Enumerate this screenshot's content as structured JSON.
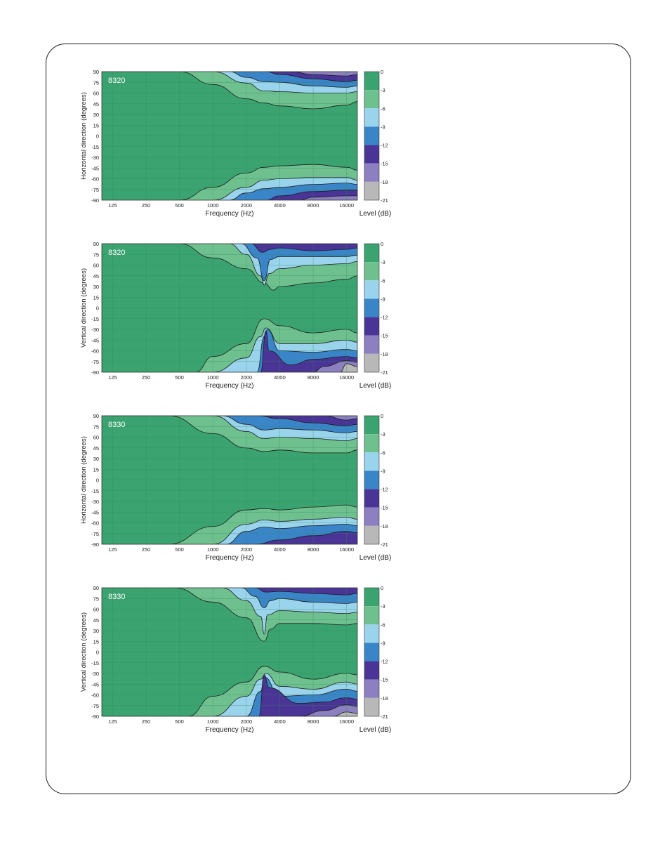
{
  "chart_data": [
    {
      "type": "heatmap",
      "label": "8320",
      "ylabel": "Horizontal direction (degrees)",
      "xlabel": "Frequency (Hz)",
      "colorbar_label": "Level (dB)",
      "xticks": [
        "125",
        "250",
        "500",
        "1000",
        "2000",
        "4000",
        "8000",
        "16000"
      ],
      "yticks": [
        90,
        75,
        60,
        45,
        30,
        15,
        0,
        -15,
        -30,
        -45,
        -60,
        -75,
        -90
      ],
      "colorbar_ticks": [
        0,
        -3,
        -6,
        -9,
        -12,
        -15,
        -18,
        -21
      ],
      "xlim": [
        100,
        20000
      ],
      "ylim": [
        -90,
        90
      ],
      "contour_levels_db": [
        -3,
        -6,
        -9,
        -12,
        -15,
        -18
      ],
      "contours_top": [
        {
          "level": -3,
          "x": [
            500,
            1000,
            2000,
            2900,
            4000,
            8000,
            16000,
            20000
          ],
          "y": [
            90,
            72,
            52,
            46,
            42,
            38,
            43,
            48
          ]
        },
        {
          "level": -6,
          "x": [
            1000,
            2000,
            2900,
            4000,
            8000,
            16000,
            20000
          ],
          "y": [
            90,
            74,
            63,
            62,
            60,
            60,
            62
          ]
        },
        {
          "level": -9,
          "x": [
            1400,
            2000,
            2900,
            4000,
            8000,
            16000,
            20000
          ],
          "y": [
            90,
            82,
            76,
            75,
            70,
            68,
            70
          ]
        },
        {
          "level": -12,
          "x": [
            3000,
            4000,
            8000,
            16000,
            20000
          ],
          "y": [
            90,
            86,
            80,
            76,
            78
          ]
        },
        {
          "level": -15,
          "x": [
            5000,
            8000,
            16000,
            20000
          ],
          "y": [
            90,
            86,
            84,
            86
          ]
        }
      ],
      "contours_bottom": [
        {
          "level": -3,
          "x": [
            500,
            1000,
            2000,
            2900,
            4000,
            8000,
            16000,
            20000
          ],
          "y": [
            -90,
            -72,
            -52,
            -44,
            -42,
            -40,
            -44,
            -48
          ]
        },
        {
          "level": -6,
          "x": [
            1000,
            2000,
            2900,
            4000,
            8000,
            16000,
            20000
          ],
          "y": [
            -90,
            -72,
            -62,
            -60,
            -58,
            -58,
            -62
          ]
        },
        {
          "level": -9,
          "x": [
            1400,
            2000,
            2900,
            4000,
            8000,
            16000,
            20000
          ],
          "y": [
            -90,
            -80,
            -74,
            -72,
            -68,
            -66,
            -68
          ]
        },
        {
          "level": -12,
          "x": [
            3000,
            4000,
            8000,
            16000,
            20000
          ],
          "y": [
            -90,
            -84,
            -78,
            -76,
            -76
          ]
        },
        {
          "level": -15,
          "x": [
            6000,
            8000,
            16000,
            20000
          ],
          "y": [
            -90,
            -86,
            -84,
            -84
          ]
        }
      ]
    },
    {
      "type": "heatmap",
      "label": "8320",
      "ylabel": "Vertical direction (degrees)",
      "xlabel": "Frequency (Hz)",
      "colorbar_label": "Level (dB)",
      "xticks": [
        "125",
        "250",
        "500",
        "1000",
        "2000",
        "4000",
        "8000",
        "16000"
      ],
      "yticks": [
        90,
        75,
        60,
        45,
        30,
        15,
        0,
        -15,
        -30,
        -45,
        -60,
        -75,
        -90
      ],
      "colorbar_ticks": [
        0,
        -3,
        -6,
        -9,
        -12,
        -15,
        -18,
        -21
      ],
      "xlim": [
        100,
        20000
      ],
      "ylim": [
        -90,
        90
      ],
      "contour_levels_db": [
        -3,
        -6,
        -9,
        -12,
        -15,
        -18
      ],
      "contours_top": [
        {
          "level": -3,
          "x": [
            500,
            1000,
            2000,
            2900,
            3500,
            4000,
            8000,
            16000,
            20000
          ],
          "y": [
            90,
            70,
            55,
            35,
            25,
            30,
            35,
            40,
            45
          ]
        },
        {
          "level": -6,
          "x": [
            1400,
            2000,
            2700,
            2900,
            3200,
            4000,
            8000,
            16000,
            20000
          ],
          "y": [
            90,
            75,
            45,
            32,
            48,
            55,
            60,
            62,
            65
          ]
        },
        {
          "level": -9,
          "x": [
            1800,
            2500,
            2900,
            3300,
            4000,
            8000,
            16000,
            20000
          ],
          "y": [
            90,
            70,
            38,
            68,
            72,
            72,
            72,
            74
          ]
        },
        {
          "level": -12,
          "x": [
            2200,
            2800,
            3300,
            4000,
            8000,
            16000,
            20000
          ],
          "y": [
            90,
            78,
            82,
            84,
            80,
            82,
            84
          ]
        }
      ],
      "contours_bottom": [
        {
          "level": -3,
          "x": [
            700,
            1000,
            2000,
            2900,
            4000,
            8000,
            16000,
            20000
          ],
          "y": [
            -90,
            -68,
            -50,
            -15,
            -25,
            -35,
            -30,
            -35
          ]
        },
        {
          "level": -6,
          "x": [
            1000,
            2000,
            2700,
            3000,
            4000,
            8000,
            16000,
            20000
          ],
          "y": [
            -90,
            -70,
            -40,
            -28,
            -50,
            -50,
            -45,
            -48
          ]
        },
        {
          "level": -9,
          "x": [
            2500,
            2900,
            3100,
            4000,
            8000,
            16000,
            20000
          ],
          "y": [
            -90,
            -40,
            -30,
            -60,
            -62,
            -58,
            -60
          ]
        },
        {
          "level": -12,
          "x": [
            2700,
            3000,
            3200,
            5000,
            8000,
            16000,
            20000
          ],
          "y": [
            -90,
            -32,
            -60,
            -80,
            -72,
            -68,
            -70
          ]
        },
        {
          "level": -15,
          "x": [
            8000,
            10000,
            16000,
            20000
          ],
          "y": [
            -90,
            -82,
            -74,
            -76
          ]
        },
        {
          "level": -18,
          "x": [
            14000,
            16000,
            20000
          ],
          "y": [
            -90,
            -78,
            -82
          ]
        }
      ]
    },
    {
      "type": "heatmap",
      "label": "8330",
      "ylabel": "Horizontal direction (degrees)",
      "xlabel": "Frequency (Hz)",
      "colorbar_label": "Level (dB)",
      "xticks": [
        "125",
        "250",
        "500",
        "1000",
        "2000",
        "4000",
        "8000",
        "16000"
      ],
      "yticks": [
        90,
        75,
        60,
        45,
        30,
        15,
        0,
        -15,
        -30,
        -45,
        -60,
        -75,
        -90
      ],
      "colorbar_ticks": [
        0,
        -3,
        -6,
        -9,
        -12,
        -15,
        -18,
        -21
      ],
      "xlim": [
        100,
        20000
      ],
      "ylim": [
        -90,
        90
      ],
      "contour_levels_db": [
        -3,
        -6,
        -9,
        -12,
        -15,
        -18
      ],
      "contours_top": [
        {
          "level": -3,
          "x": [
            400,
            1000,
            2000,
            2900,
            4000,
            8000,
            16000,
            20000
          ],
          "y": [
            90,
            65,
            45,
            40,
            42,
            38,
            38,
            42
          ]
        },
        {
          "level": -6,
          "x": [
            1000,
            2000,
            2900,
            4000,
            8000,
            16000,
            20000
          ],
          "y": [
            90,
            68,
            58,
            60,
            58,
            55,
            58
          ]
        },
        {
          "level": -9,
          "x": [
            1200,
            2000,
            2900,
            4000,
            8000,
            16000,
            20000
          ],
          "y": [
            90,
            78,
            70,
            72,
            70,
            66,
            68
          ]
        },
        {
          "level": -12,
          "x": [
            2500,
            4000,
            8000,
            16000,
            20000
          ],
          "y": [
            90,
            86,
            80,
            76,
            78
          ]
        },
        {
          "level": -15,
          "x": [
            10000,
            16000,
            20000
          ],
          "y": [
            90,
            84,
            86
          ]
        }
      ],
      "contours_bottom": [
        {
          "level": -3,
          "x": [
            400,
            1000,
            2000,
            2900,
            4000,
            8000,
            16000,
            20000
          ],
          "y": [
            -90,
            -65,
            -42,
            -40,
            -42,
            -38,
            -35,
            -38
          ]
        },
        {
          "level": -6,
          "x": [
            1000,
            2000,
            2900,
            4000,
            8000,
            16000,
            20000
          ],
          "y": [
            -90,
            -62,
            -56,
            -58,
            -55,
            -52,
            -55
          ]
        },
        {
          "level": -9,
          "x": [
            1300,
            2000,
            2900,
            4000,
            8000,
            16000,
            20000
          ],
          "y": [
            -90,
            -72,
            -66,
            -68,
            -64,
            -62,
            -64
          ]
        },
        {
          "level": -12,
          "x": [
            2400,
            4000,
            8000,
            16000,
            20000
          ],
          "y": [
            -90,
            -84,
            -78,
            -72,
            -74
          ]
        }
      ]
    },
    {
      "type": "heatmap",
      "label": "8330",
      "ylabel": "Vertical direction (degrees)",
      "xlabel": "Frequency (Hz)",
      "colorbar_label": "Level (dB)",
      "xticks": [
        "125",
        "250",
        "500",
        "1000",
        "2000",
        "4000",
        "8000",
        "16000"
      ],
      "yticks": [
        90,
        75,
        60,
        45,
        30,
        15,
        0,
        -15,
        -30,
        -45,
        -60,
        -75,
        -90
      ],
      "colorbar_ticks": [
        0,
        -3,
        -6,
        -9,
        -12,
        -15,
        -18,
        -21
      ],
      "xlim": [
        100,
        20000
      ],
      "ylim": [
        -90,
        90
      ],
      "contour_levels_db": [
        -3,
        -6,
        -9,
        -12,
        -15,
        -18
      ],
      "contours_top": [
        {
          "level": -3,
          "x": [
            450,
            1000,
            2000,
            2900,
            3300,
            4000,
            8000,
            16000,
            20000
          ],
          "y": [
            90,
            70,
            48,
            15,
            32,
            40,
            40,
            38,
            40
          ]
        },
        {
          "level": -6,
          "x": [
            1200,
            2000,
            2700,
            2900,
            3100,
            4000,
            8000,
            16000,
            20000
          ],
          "y": [
            90,
            72,
            50,
            25,
            52,
            58,
            56,
            54,
            56
          ]
        },
        {
          "level": -9,
          "x": [
            1800,
            2400,
            2900,
            3300,
            4000,
            8000,
            16000,
            20000
          ],
          "y": [
            90,
            78,
            62,
            72,
            75,
            70,
            68,
            70
          ]
        },
        {
          "level": -12,
          "x": [
            2400,
            3000,
            4000,
            8000,
            16000,
            20000
          ],
          "y": [
            90,
            84,
            85,
            82,
            80,
            82
          ]
        }
      ],
      "contours_bottom": [
        {
          "level": -3,
          "x": [
            600,
            1000,
            2000,
            2900,
            4000,
            8000,
            16000,
            20000
          ],
          "y": [
            -90,
            -62,
            -42,
            -20,
            -28,
            -38,
            -30,
            -32
          ]
        },
        {
          "level": -6,
          "x": [
            1000,
            2000,
            2700,
            3000,
            4000,
            8000,
            16000,
            20000
          ],
          "y": [
            -90,
            -62,
            -38,
            -30,
            -48,
            -52,
            -42,
            -45
          ]
        },
        {
          "level": -9,
          "x": [
            2000,
            2700,
            2900,
            4000,
            8000,
            16000,
            20000
          ],
          "y": [
            -90,
            -55,
            -35,
            -62,
            -60,
            -52,
            -55
          ]
        },
        {
          "level": -12,
          "x": [
            2600,
            2900,
            3200,
            6000,
            10000,
            16000,
            20000
          ],
          "y": [
            -90,
            -32,
            -50,
            -72,
            -70,
            -64,
            -66
          ]
        },
        {
          "level": -15,
          "x": [
            6000,
            10000,
            16000,
            20000
          ],
          "y": [
            -90,
            -82,
            -74,
            -76
          ]
        },
        {
          "level": -18,
          "x": [
            12000,
            16000,
            20000
          ],
          "y": [
            -90,
            -84,
            -86
          ]
        }
      ]
    }
  ],
  "colors": {
    "band_0": "#3aa370",
    "band_3": "#6fc08f",
    "band_6": "#9ad3ec",
    "band_9": "#3a84c8",
    "band_12": "#4a3596",
    "band_15": "#8c80c0",
    "band_18": "#b8b8b8",
    "contour_line": "#1a1a1a",
    "grid_line": "#2d8a5a",
    "plot_label": "#ffffff"
  }
}
